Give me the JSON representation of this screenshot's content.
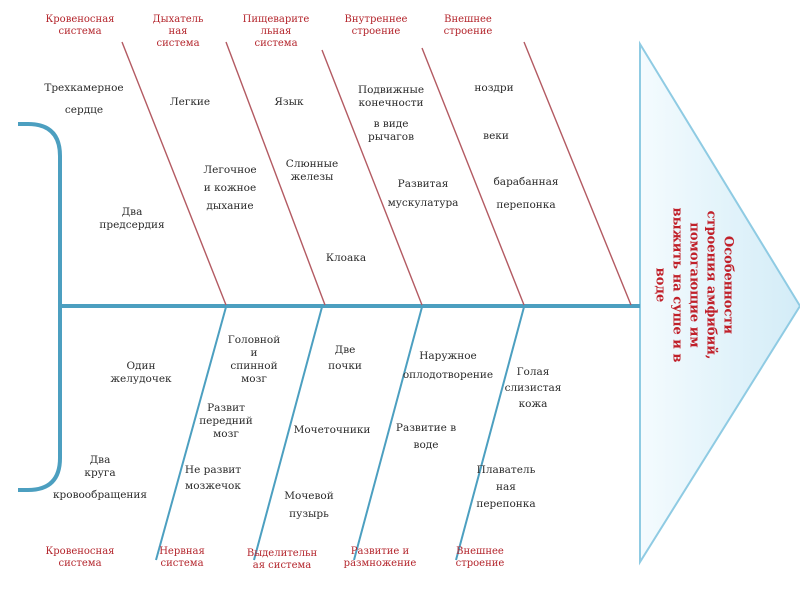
{
  "head": {
    "title": "Особенности строения амфибий, помогающие им выжить на суше и в воде",
    "lines": [
      "Особенности",
      "строения амфибий,",
      "помогающие им",
      "выжить на суше и в",
      "воде"
    ]
  },
  "categories": {
    "top": [
      {
        "line1": "Кровеносная",
        "line2": "система"
      },
      {
        "line1": "Дыхатель",
        "line2": "ная",
        "line3": "система"
      },
      {
        "line1": "Пищеварите",
        "line2": "льная",
        "line3": "система"
      },
      {
        "line1": "Внутреннее",
        "line2": "строение"
      },
      {
        "line1": "Внешнее",
        "line2": "строение"
      }
    ],
    "bottom": [
      {
        "line1": "Кровеносная",
        "line2": "система"
      },
      {
        "line1": "Нервная",
        "line2": "система"
      },
      {
        "line1": "Выделительн",
        "line2": "ая система"
      },
      {
        "line1": "Развитие и",
        "line2": "размножение"
      },
      {
        "line1": "Внешнее",
        "line2": "строение"
      }
    ]
  },
  "labels": {
    "circ_top": [
      {
        "line1": "Трехкамерное",
        "line2": "сердце"
      },
      {
        "line1": "Два",
        "line2": "предсердия"
      }
    ],
    "resp": [
      {
        "line1": "Легкие"
      },
      {
        "line1": "Легочное",
        "line2": "и кожное",
        "line3": "дыхание"
      }
    ],
    "dig": [
      {
        "line1": "Язык"
      },
      {
        "line1": "Слюнные",
        "line2": "железы"
      },
      {
        "line1": "Клоака"
      }
    ],
    "internal": [
      {
        "line1": "Подвижные",
        "line2": "конечности",
        "line3": "в виде",
        "line4": "рычагов"
      },
      {
        "line1": "Развитая",
        "line2": "мускулатура"
      }
    ],
    "ext_top": [
      {
        "line1": "ноздри"
      },
      {
        "line1": "веки"
      },
      {
        "line1": "барабанная",
        "line2": "перепонка"
      }
    ],
    "circ_bottom": [
      {
        "line1": "Один",
        "line2": "желудочек"
      },
      {
        "line1": "Два",
        "line2": "круга",
        "line3": "кровообращения"
      }
    ],
    "nerv": [
      {
        "line1": "Головной",
        "line2": "и",
        "line3": "спинной",
        "line4": "мозг"
      },
      {
        "line1": "Развит",
        "line2": "передний",
        "line3": "мозг"
      },
      {
        "line1": "Не развит",
        "line2": "мозжечок"
      }
    ],
    "excr": [
      {
        "line1": "Две",
        "line2": "почки"
      },
      {
        "line1": "Мочеточники"
      },
      {
        "line1": "Мочевой",
        "line2": "пузырь"
      }
    ],
    "devel": [
      {
        "line1": "Наружное",
        "line2": "оплодотворение"
      },
      {
        "line1": "Развитие в",
        "line2": "воде"
      }
    ],
    "ext_bottom": [
      {
        "line1": "Голая",
        "line2": "слизистая",
        "line3": "кожа"
      },
      {
        "line1": "Плаватель",
        "line2": "ная",
        "line3": "перепонка"
      }
    ]
  },
  "colors": {
    "spine": "#4c9fc0",
    "bone": "#b35a62",
    "head_fill": "#dff2fb",
    "head_stroke": "#8fcbe3",
    "category_text": "#b4262d",
    "head_text": "#c0202a"
  }
}
